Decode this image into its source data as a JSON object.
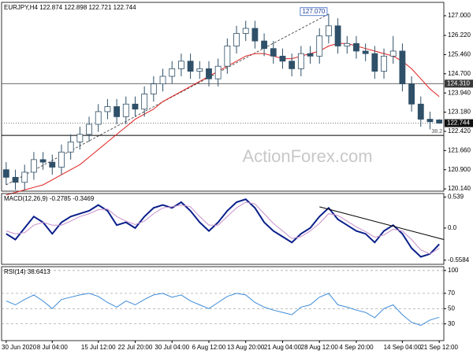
{
  "chart_data": [
    {
      "type": "candlestick",
      "title": "EURJPY,H4 122.874 122.898 122.721 122.744",
      "watermark": "ActionForex.com",
      "categories": [
        "30 Jun 2020",
        null,
        null,
        null,
        null,
        "8 Jul 04:00",
        null,
        null,
        null,
        null,
        "15 Jul 12:00",
        null,
        null,
        null,
        "22 Jul 20:00",
        null,
        null,
        null,
        "30 Jul 04:00",
        null,
        null,
        null,
        "6 Aug 12:00",
        null,
        null,
        null,
        "13 Aug 20:00",
        null,
        null,
        null,
        "21 Aug 04:00",
        null,
        null,
        null,
        "28 Aug 12:00",
        null,
        null,
        null,
        "4 Sep 20:00",
        null,
        null,
        null,
        null,
        "14 Sep 04:00",
        null,
        null,
        null,
        "21 Sep 12:00"
      ],
      "color": "#2f5068",
      "open": [
        120.9,
        120.6,
        120.4,
        120.8,
        121.3,
        121.2,
        121.0,
        121.6,
        122.0,
        122.3,
        122.7,
        123.2,
        123.4,
        123.0,
        123.5,
        123.3,
        123.9,
        124.3,
        124.6,
        124.9,
        125.2,
        124.8,
        124.9,
        124.5,
        125.0,
        125.8,
        126.3,
        126.5,
        126.0,
        125.7,
        125.4,
        125.2,
        124.9,
        125.5,
        125.4,
        126.2,
        126.6,
        125.8,
        125.9,
        125.6,
        125.5,
        124.8,
        125.4,
        125.6,
        124.3,
        123.5,
        122.9,
        122.874
      ],
      "high": [
        121.2,
        120.9,
        121.1,
        121.6,
        121.6,
        121.5,
        121.9,
        122.3,
        122.6,
        123.0,
        123.5,
        123.7,
        123.7,
        123.8,
        123.8,
        124.2,
        124.6,
        124.9,
        125.2,
        125.5,
        125.5,
        125.2,
        125.2,
        125.3,
        126.1,
        126.6,
        126.8,
        126.8,
        126.3,
        126.0,
        125.7,
        125.5,
        125.8,
        125.8,
        126.5,
        127.07,
        126.9,
        126.2,
        126.2,
        125.9,
        125.8,
        125.7,
        126.2,
        125.9,
        124.6,
        123.8,
        123.2,
        122.898
      ],
      "low": [
        120.3,
        120.1,
        120.1,
        120.5,
        120.9,
        120.7,
        120.7,
        121.3,
        121.7,
        122.0,
        122.4,
        122.9,
        122.7,
        122.7,
        123.0,
        123.0,
        123.6,
        124.0,
        124.3,
        124.6,
        124.5,
        124.5,
        124.2,
        124.2,
        124.7,
        125.5,
        126.0,
        125.7,
        125.4,
        125.1,
        124.9,
        124.6,
        124.6,
        125.1,
        125.1,
        125.9,
        125.5,
        125.5,
        125.3,
        125.2,
        124.5,
        124.5,
        125.1,
        124.0,
        123.2,
        122.6,
        122.5,
        122.721
      ],
      "close": [
        120.6,
        120.4,
        120.8,
        121.3,
        121.2,
        121.0,
        121.6,
        122.0,
        122.3,
        122.7,
        123.2,
        123.4,
        123.0,
        123.5,
        123.3,
        123.9,
        124.3,
        124.6,
        124.9,
        125.2,
        124.8,
        124.9,
        124.5,
        125.0,
        125.8,
        126.3,
        126.5,
        126.0,
        125.7,
        125.4,
        125.2,
        124.9,
        125.5,
        125.4,
        126.2,
        126.6,
        125.8,
        125.9,
        125.6,
        125.5,
        124.8,
        125.4,
        125.6,
        124.3,
        123.5,
        122.9,
        122.8,
        122.744
      ],
      "ma": {
        "color": "#e02020",
        "values": [
          119.9,
          120.0,
          120.1,
          120.2,
          120.3,
          120.5,
          120.7,
          120.9,
          121.1,
          121.4,
          121.7,
          122.0,
          122.3,
          122.6,
          122.9,
          123.1,
          123.3,
          123.6,
          123.8,
          124.0,
          124.2,
          124.4,
          124.6,
          124.8,
          125.0,
          125.2,
          125.4,
          125.5,
          125.5,
          125.4,
          125.3,
          125.3,
          125.4,
          125.5,
          125.6,
          125.8,
          125.9,
          125.9,
          125.8,
          125.7,
          125.6,
          125.5,
          125.4,
          125.2,
          124.9,
          124.5,
          124.1,
          123.8
        ]
      },
      "trendline": {
        "x": [
          0,
          35
        ],
        "y": [
          120.3,
          127.07
        ]
      },
      "high_label": {
        "index": 35,
        "value": 127.07,
        "label": "127.070"
      },
      "level": {
        "value": 124.31,
        "label": "124.310"
      },
      "fib": {
        "ratio": 38.2,
        "price": 122.26
      },
      "current": {
        "value": 122.744,
        "label": "122.744"
      },
      "ylim": [
        120.05,
        127.53
      ],
      "yticks": [
        {
          "value": 127.0,
          "label": "127.000"
        },
        {
          "value": 126.22,
          "label": "126.220"
        },
        {
          "value": 125.46,
          "label": "125.460"
        },
        {
          "value": 124.7,
          "label": "124.700"
        },
        {
          "value": 123.94,
          "label": "123.940"
        },
        {
          "value": 123.18,
          "label": "123.180"
        },
        {
          "value": 122.42,
          "label": "122.420"
        },
        {
          "value": 121.66,
          "label": "121.660"
        },
        {
          "value": 120.9,
          "label": "120.900"
        },
        {
          "value": 120.14,
          "label": "120.140"
        }
      ]
    },
    {
      "type": "line",
      "title": "MACD(12,26,9) -0.2785 -0.3469",
      "grid": false,
      "series": [
        {
          "color": "#0a1f8a",
          "width": 2,
          "values": [
            -0.1,
            -0.2,
            0.0,
            0.2,
            0.1,
            -0.1,
            0.1,
            0.2,
            0.25,
            0.3,
            0.4,
            0.3,
            0.05,
            0.1,
            0.0,
            0.2,
            0.35,
            0.4,
            0.35,
            0.45,
            0.3,
            0.1,
            -0.05,
            0.1,
            0.3,
            0.45,
            0.5,
            0.35,
            0.1,
            -0.05,
            -0.15,
            -0.25,
            -0.1,
            0.0,
            0.2,
            0.35,
            0.15,
            0.05,
            -0.05,
            -0.1,
            -0.25,
            -0.05,
            0.05,
            -0.1,
            -0.35,
            -0.5,
            -0.45,
            -0.28
          ]
        },
        {
          "color": "#c890c8",
          "width": 1,
          "values": [
            -0.05,
            -0.1,
            -0.08,
            0.05,
            0.1,
            0.05,
            0.05,
            0.12,
            0.2,
            0.25,
            0.32,
            0.33,
            0.2,
            0.12,
            0.06,
            0.12,
            0.25,
            0.35,
            0.37,
            0.4,
            0.37,
            0.2,
            0.05,
            0.05,
            0.2,
            0.35,
            0.45,
            0.42,
            0.25,
            0.08,
            -0.05,
            -0.18,
            -0.15,
            -0.05,
            0.08,
            0.25,
            0.22,
            0.12,
            0.02,
            -0.06,
            -0.16,
            -0.12,
            -0.02,
            -0.05,
            -0.2,
            -0.38,
            -0.45,
            -0.35
          ]
        }
      ],
      "trendline": {
        "x": [
          34,
          47.5
        ],
        "y": [
          0.37,
          -0.2
        ]
      },
      "ylim": [
        -0.63,
        0.6
      ],
      "yticks": [
        0.539,
        {
          "value": 0,
          "label": "0.0"
        },
        -0.5584
      ]
    },
    {
      "type": "line",
      "title": "RSI(14) 38.6413",
      "grid": true,
      "series": [
        {
          "color": "#3d8bd8",
          "width": 1,
          "values": [
            60,
            55,
            62,
            68,
            60,
            50,
            62,
            65,
            68,
            70,
            66,
            58,
            52,
            60,
            55,
            62,
            68,
            70,
            65,
            68,
            60,
            55,
            50,
            58,
            66,
            70,
            68,
            58,
            52,
            48,
            45,
            42,
            52,
            55,
            65,
            70,
            55,
            52,
            48,
            45,
            38,
            50,
            55,
            42,
            32,
            28,
            35,
            38.64
          ]
        }
      ],
      "ylim": [
        8,
        105
      ],
      "yticks": [
        100,
        70,
        50,
        30
      ]
    }
  ]
}
